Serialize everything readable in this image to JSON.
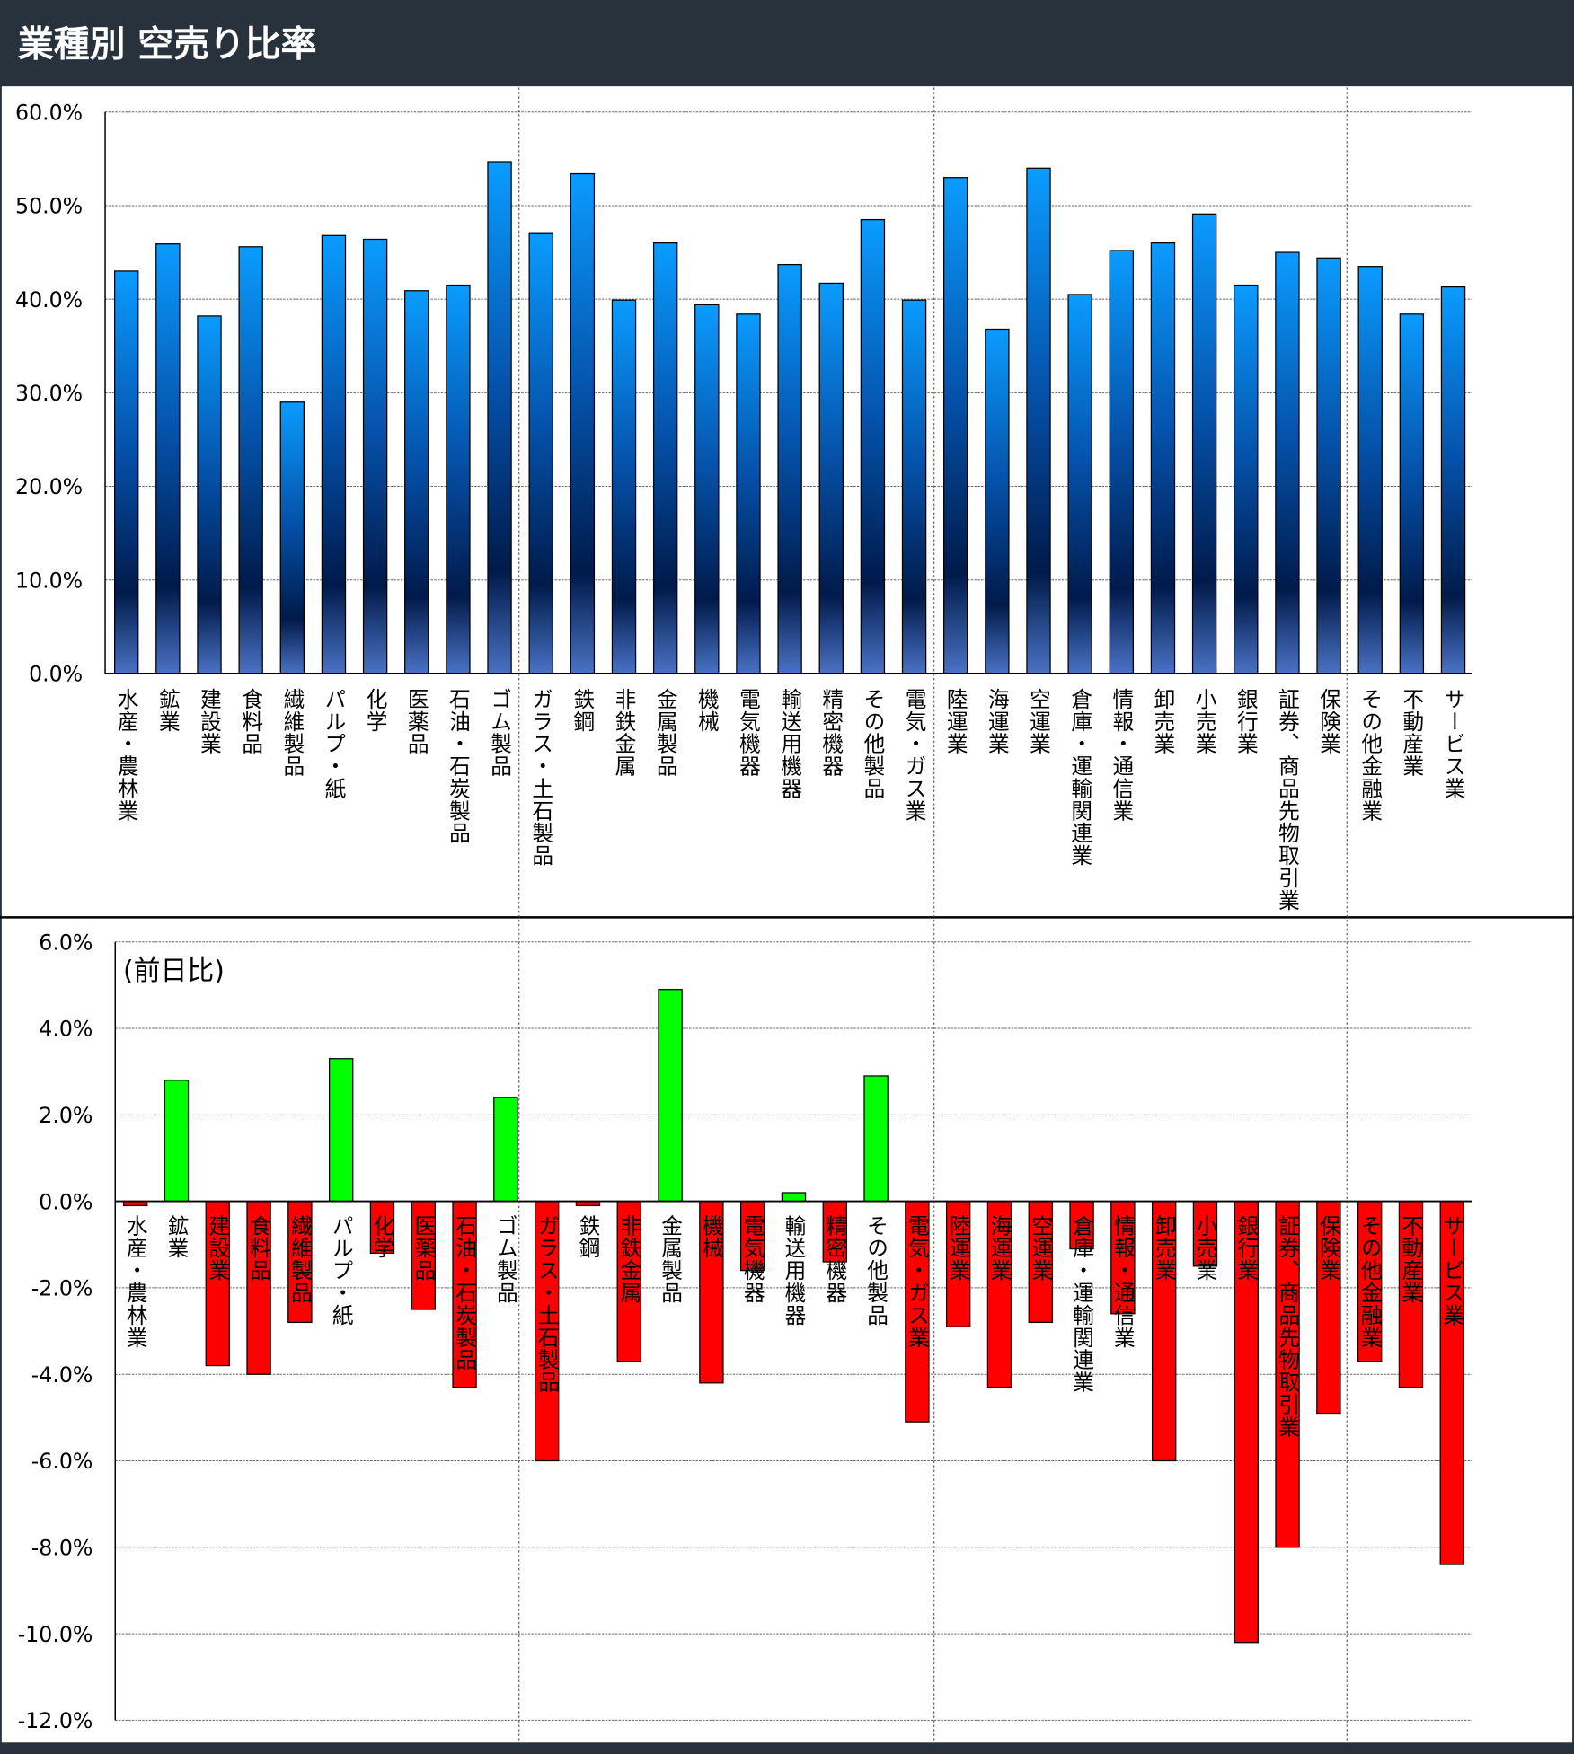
{
  "title": "業種別 空売り比率",
  "colors": {
    "header": "#27323d",
    "bar_top": "#0a9cff",
    "bar_mid": "#001a4a",
    "bar_bottom": "#4a72c4",
    "up": "#00ff00",
    "down": "#ff0000"
  },
  "chart_data": [
    {
      "type": "bar",
      "title": "業種別 空売り比率",
      "ylabel": "",
      "ylim": [
        0,
        60
      ],
      "yticks": [
        "0.0%",
        "10.0%",
        "20.0%",
        "30.0%",
        "40.0%",
        "50.0%",
        "60.0%"
      ],
      "grid": true,
      "categories": [
        "水産・農林業",
        "鉱業",
        "建設業",
        "食料品",
        "繊維製品",
        "パルプ・紙",
        "化学",
        "医薬品",
        "石油・石炭製品",
        "ゴム製品",
        "ガラス・土石製品",
        "鉄鋼",
        "非鉄金属",
        "金属製品",
        "機械",
        "電気機器",
        "輸送用機器",
        "精密機器",
        "その他製品",
        "電気・ガス業",
        "陸運業",
        "海運業",
        "空運業",
        "倉庫・運輸関連業",
        "情報・通信業",
        "卸売業",
        "小売業",
        "銀行業",
        "証券、商品先物取引業",
        "保険業",
        "その他金融業",
        "不動産業",
        "サービス業"
      ],
      "values": [
        43.0,
        45.9,
        38.2,
        45.6,
        29.0,
        46.8,
        46.4,
        40.9,
        41.5,
        54.7,
        47.1,
        53.4,
        39.9,
        46.0,
        39.4,
        38.4,
        43.7,
        41.7,
        48.5,
        39.9,
        53.0,
        36.8,
        54.0,
        40.5,
        45.2,
        46.0,
        49.1,
        41.5,
        45.0,
        44.4,
        43.5,
        38.4,
        41.3
      ]
    },
    {
      "type": "bar",
      "title": "(前日比)",
      "ylim": [
        -12,
        6
      ],
      "yticks": [
        "-12.0%",
        "-10.0%",
        "-8.0%",
        "-6.0%",
        "-4.0%",
        "-2.0%",
        "0.0%",
        "2.0%",
        "4.0%",
        "6.0%"
      ],
      "grid": true,
      "categories": [
        "水産・農林業",
        "鉱業",
        "建設業",
        "食料品",
        "繊維製品",
        "パルプ・紙",
        "化学",
        "医薬品",
        "石油・石炭製品",
        "ゴム製品",
        "ガラス・土石製品",
        "鉄鋼",
        "非鉄金属",
        "金属製品",
        "機械",
        "電気機器",
        "輸送用機器",
        "精密機器",
        "その他製品",
        "電気・ガス業",
        "陸運業",
        "海運業",
        "空運業",
        "倉庫・運輸関連業",
        "情報・通信業",
        "卸売業",
        "小売業",
        "銀行業",
        "証券、商品先物取引業",
        "保険業",
        "その他金融業",
        "不動産業",
        "サービス業"
      ],
      "values": [
        -0.1,
        2.8,
        -3.8,
        -4.0,
        -2.8,
        3.3,
        -1.2,
        -2.5,
        -4.3,
        2.4,
        -6.0,
        -0.1,
        -3.7,
        4.9,
        -4.2,
        -1.6,
        0.2,
        -1.4,
        2.9,
        -5.1,
        -2.9,
        -4.3,
        -2.8,
        -1.1,
        -2.6,
        -6.0,
        -1.5,
        -10.2,
        -8.0,
        -4.9,
        -3.7,
        -4.3,
        -8.4
      ]
    }
  ]
}
